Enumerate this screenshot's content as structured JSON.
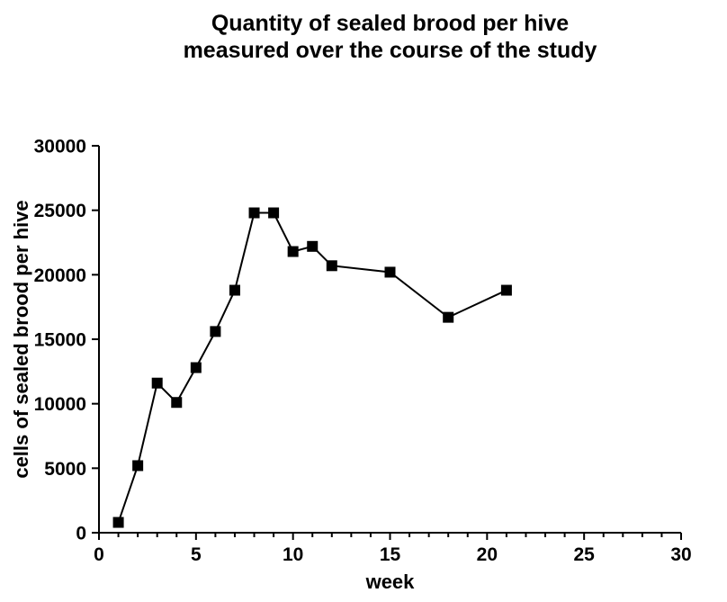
{
  "chart_data": {
    "type": "line",
    "title": "Quantity of sealed brood per hive measured over the course of the study",
    "title_lines": [
      "Quantity of sealed brood per hive",
      "measured over the course of the study"
    ],
    "xlabel": "week",
    "ylabel": "cells of sealed brood per hive",
    "x": [
      1,
      2,
      3,
      4,
      5,
      6,
      7,
      8,
      9,
      10,
      11,
      12,
      15,
      18,
      21
    ],
    "values": [
      800,
      5200,
      11600,
      10100,
      12800,
      15600,
      18800,
      24800,
      24800,
      21800,
      22200,
      20700,
      20200,
      16700,
      18800
    ],
    "series_name": "cells of sealed brood per hive",
    "xlim": [
      0,
      30
    ],
    "ylim": [
      0,
      30000
    ],
    "xticks": [
      0,
      5,
      10,
      15,
      20,
      25,
      30
    ],
    "yticks": [
      0,
      5000,
      10000,
      15000,
      20000,
      25000,
      30000
    ],
    "x_minor_step": 1,
    "marker": "filled-square",
    "line_color": "#000000",
    "background_color": "#ffffff",
    "grid": false,
    "legend": "none"
  }
}
